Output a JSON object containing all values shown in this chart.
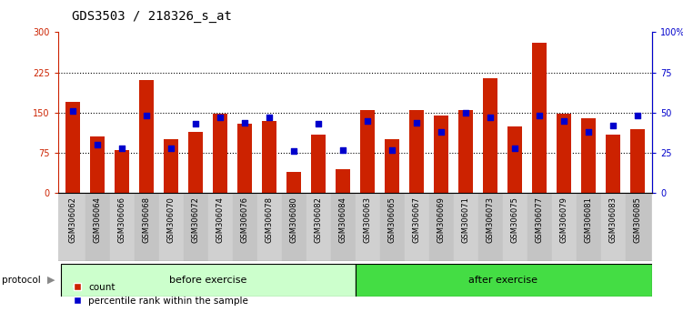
{
  "title": "GDS3503 / 218326_s_at",
  "categories": [
    "GSM306062",
    "GSM306064",
    "GSM306066",
    "GSM306068",
    "GSM306070",
    "GSM306072",
    "GSM306074",
    "GSM306076",
    "GSM306078",
    "GSM306080",
    "GSM306082",
    "GSM306084",
    "GSM306063",
    "GSM306065",
    "GSM306067",
    "GSM306069",
    "GSM306071",
    "GSM306073",
    "GSM306075",
    "GSM306077",
    "GSM306079",
    "GSM306081",
    "GSM306083",
    "GSM306085"
  ],
  "red_values": [
    170,
    105,
    80,
    210,
    100,
    115,
    148,
    130,
    135,
    40,
    110,
    45,
    155,
    100,
    155,
    145,
    155,
    215,
    125,
    280,
    148,
    140,
    110,
    120
  ],
  "blue_values_pct": [
    51,
    30,
    28,
    48,
    28,
    43,
    47,
    44,
    47,
    26,
    43,
    27,
    45,
    27,
    44,
    38,
    50,
    47,
    28,
    48,
    45,
    38,
    42,
    48
  ],
  "before_count": 12,
  "after_count": 12,
  "before_label": "before exercise",
  "after_label": "after exercise",
  "protocol_label": "protocol",
  "legend_red": "count",
  "legend_blue": "percentile rank within the sample",
  "left_yticks": [
    0,
    75,
    150,
    225,
    300
  ],
  "right_yticks": [
    0,
    25,
    50,
    75,
    100
  ],
  "left_ylabel_color": "#cc2200",
  "right_ylabel_color": "#0000cc",
  "bar_color": "#cc2200",
  "dot_color": "#0000cc",
  "before_bg": "#ccffcc",
  "after_bg": "#44dd44",
  "title_fontsize": 10,
  "tick_fontsize": 7,
  "ylim_left": [
    0,
    300
  ],
  "ylim_right": [
    0,
    100
  ],
  "grid_yticks": [
    75,
    150,
    225
  ]
}
